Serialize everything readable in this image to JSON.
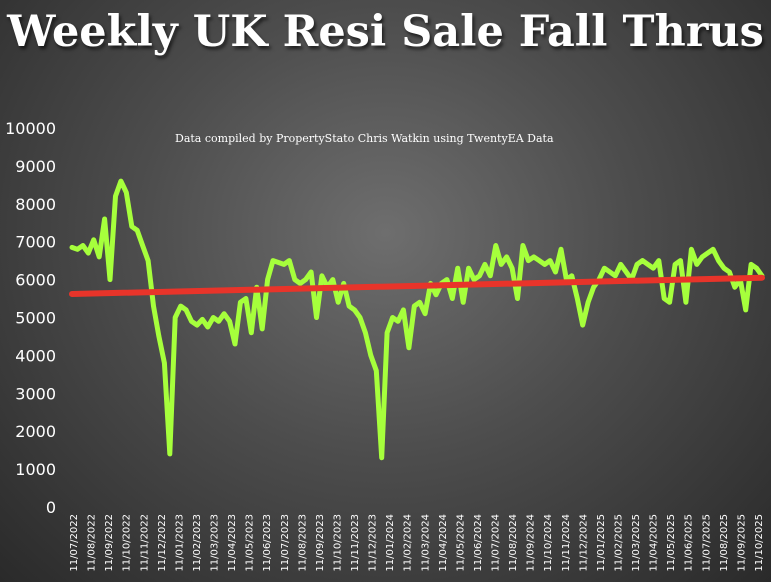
{
  "chart_data": {
    "type": "line",
    "title": "Weekly UK Resi Sale Fall Thrus",
    "annotation": "Data compiled by PropertyStato Chris Watkin using TwentyEA Data",
    "ylim": [
      0,
      10000
    ],
    "yticks": [
      "0",
      "1000",
      "2000",
      "3000",
      "4000",
      "5000",
      "6000",
      "7000",
      "8000",
      "9000",
      "10000"
    ],
    "xticks": [
      "11/07/2022",
      "11/08/2022",
      "11/09/2022",
      "11/10/2022",
      "11/11/2022",
      "11/12/2022",
      "11/01/2023",
      "11/02/2023",
      "11/03/2023",
      "11/04/2023",
      "11/05/2023",
      "11/06/2023",
      "11/07/2023",
      "11/08/2023",
      "11/09/2023",
      "11/10/2023",
      "11/11/2023",
      "11/12/2023",
      "11/01/2024",
      "11/02/2024",
      "11/03/2024",
      "11/04/2024",
      "11/05/2024",
      "11/06/2024",
      "11/07/2024",
      "11/08/2024",
      "11/09/2024",
      "11/10/2024",
      "11/11/2024",
      "11/12/2024",
      "11/01/2025",
      "11/02/2025",
      "11/03/2025",
      "11/04/2025",
      "11/05/2025",
      "11/06/2025",
      "11/07/2025",
      "11/08/2025",
      "11/09/2025",
      "11/10/2025"
    ],
    "colors": {
      "series": "#a6ff3c",
      "trend": "#e8342a"
    },
    "series": [
      {
        "values": [
          6850,
          6800,
          6900,
          6700,
          7050,
          6600,
          7600,
          6000,
          8200,
          8600,
          8300,
          7400,
          7300,
          6900,
          6500,
          5300,
          4500,
          3800,
          1400,
          5000,
          5300,
          5200,
          4900,
          4800,
          4950,
          4750,
          5000,
          4900,
          5100,
          4900,
          4300,
          5400,
          5500,
          4600,
          5800,
          4700,
          6000,
          6500,
          6450,
          6400,
          6500,
          6000,
          5900,
          6000,
          6200,
          5000,
          6100,
          5800,
          6000,
          5400,
          5900,
          5300,
          5200,
          5000,
          4600,
          4000,
          3600,
          1300,
          4600,
          5000,
          4900,
          5200,
          4200,
          5300,
          5400,
          5100,
          5900,
          5600,
          5900,
          6000,
          5500,
          6300,
          5400,
          6300,
          6000,
          6100,
          6400,
          6100,
          6900,
          6400,
          6600,
          6300,
          5500,
          6900,
          6500,
          6600,
          6500,
          6400,
          6500,
          6200,
          6800,
          6000,
          6100,
          5500,
          4800,
          5400,
          5800,
          6000,
          6300,
          6200,
          6100,
          6400,
          6200,
          6000,
          6400,
          6500,
          6400,
          6300,
          6500,
          5500,
          5400,
          6400,
          6500,
          5400,
          6800,
          6400,
          6600,
          6700,
          6800,
          6500,
          6300,
          6200,
          5800,
          6000,
          5200,
          6400,
          6300,
          6100
        ]
      }
    ],
    "trend": [
      5620,
      6050
    ]
  }
}
